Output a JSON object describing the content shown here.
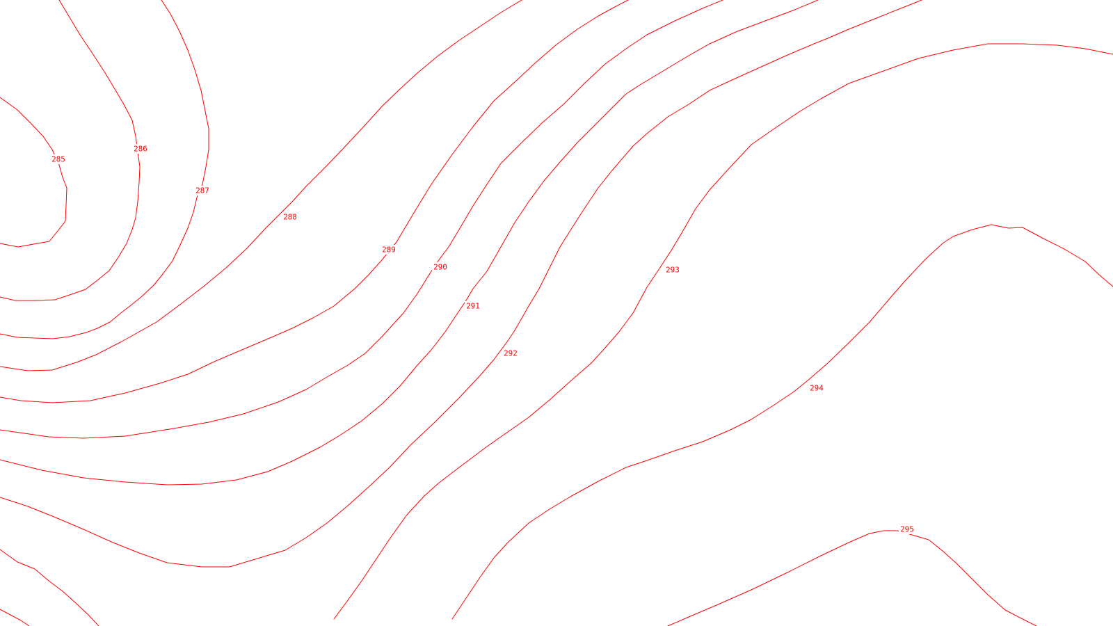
{
  "map": {
    "line_color": "#ff0000",
    "background": "#ffffff",
    "contours": [
      {
        "level": 285,
        "label": "285"
      },
      {
        "level": 286,
        "label": "286"
      },
      {
        "level": 287,
        "label": "287"
      },
      {
        "level": 288,
        "label": "288"
      },
      {
        "level": 289,
        "label": "289"
      },
      {
        "level": 290,
        "label": "290"
      },
      {
        "level": 291,
        "label": "291"
      },
      {
        "level": 292,
        "label": "292"
      },
      {
        "level": 293,
        "label": "293"
      },
      {
        "level": 294,
        "label": "294"
      },
      {
        "level": 295,
        "label": "295"
      }
    ]
  }
}
